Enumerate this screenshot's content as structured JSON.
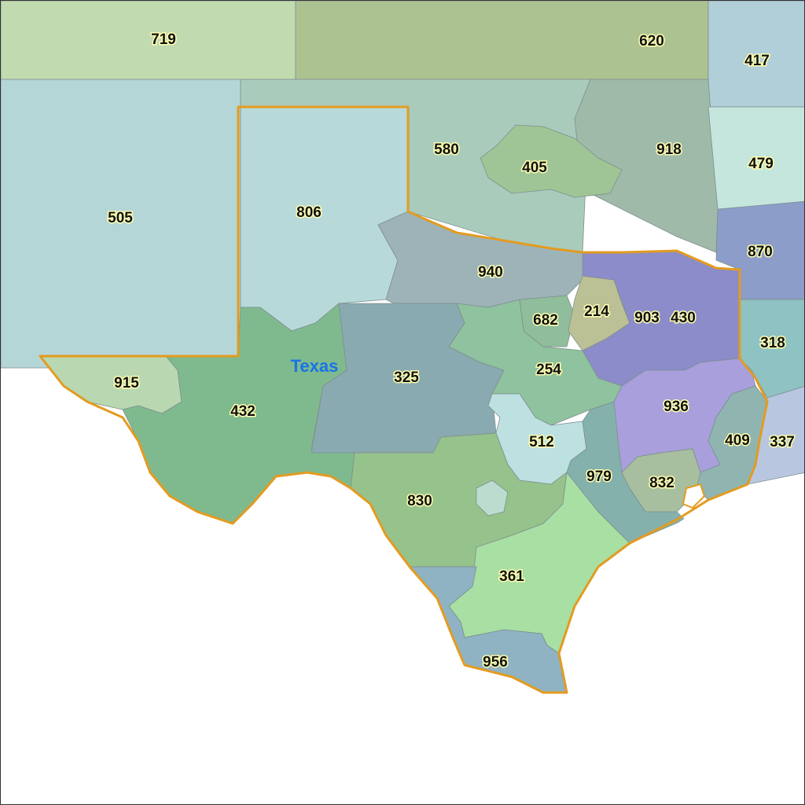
{
  "map": {
    "state_label": "Texas",
    "border_color": "#e39b20",
    "area_codes": {
      "c719": "719",
      "c620": "620",
      "c417": "417",
      "c505": "505",
      "c580": "580",
      "c405": "405",
      "c918": "918",
      "c479": "479",
      "c870": "870",
      "c318": "318",
      "c337": "337",
      "c806": "806",
      "c915": "915",
      "c432": "432",
      "c325": "325",
      "c940": "940",
      "c682": "682",
      "c214": "214",
      "c903": "903",
      "c430": "430",
      "c254": "254",
      "c936": "936",
      "c409": "409",
      "c512": "512",
      "c979": "979",
      "c832": "832",
      "c830": "830",
      "c361": "361",
      "c956": "956"
    }
  }
}
